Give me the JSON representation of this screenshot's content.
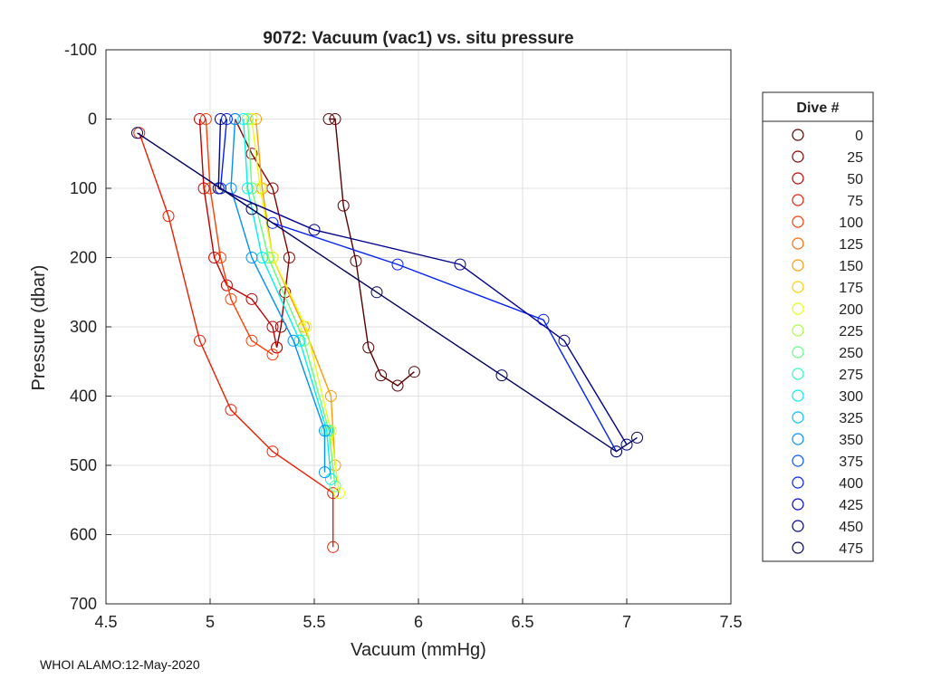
{
  "chart_data": {
    "type": "scatter",
    "title": "9072: Vacuum (vac1) vs. situ pressure",
    "xlabel": "Vacuum (mmHg)",
    "ylabel": "Pressure (dbar)",
    "xlim": [
      4.5,
      7.5
    ],
    "ylim": [
      -100,
      700
    ],
    "y_reversed": true,
    "grid": true,
    "xticks": [
      4.5,
      5,
      5.5,
      6,
      6.5,
      7,
      7.5
    ],
    "xtick_labels": [
      "4.5",
      "5",
      "5.5",
      "6",
      "6.5",
      "7",
      "7.5"
    ],
    "yticks": [
      -100,
      0,
      100,
      200,
      300,
      400,
      500,
      600,
      700
    ],
    "ytick_labels": [
      "-100",
      "0",
      "100",
      "200",
      "300",
      "400",
      "500",
      "600",
      "700"
    ],
    "legend": {
      "title": "Dive #",
      "placement": "outside-right",
      "entries": [
        {
          "label": "0",
          "color": "#5a0000"
        },
        {
          "label": "25",
          "color": "#8a0000"
        },
        {
          "label": "50",
          "color": "#c00000"
        },
        {
          "label": "75",
          "color": "#ee1c00"
        },
        {
          "label": "100",
          "color": "#ff3c00"
        },
        {
          "label": "125",
          "color": "#ff6a00"
        },
        {
          "label": "150",
          "color": "#ff9a00"
        },
        {
          "label": "175",
          "color": "#ffd000"
        },
        {
          "label": "200",
          "color": "#e6ff10"
        },
        {
          "label": "225",
          "color": "#a8ff40"
        },
        {
          "label": "250",
          "color": "#60ff80"
        },
        {
          "label": "275",
          "color": "#28ffb8"
        },
        {
          "label": "300",
          "color": "#00f0f0"
        },
        {
          "label": "325",
          "color": "#00c0ff"
        },
        {
          "label": "350",
          "color": "#0090ff"
        },
        {
          "label": "375",
          "color": "#0058ff"
        },
        {
          "label": "400",
          "color": "#0020ff"
        },
        {
          "label": "425",
          "color": "#0000d8"
        },
        {
          "label": "450",
          "color": "#000090"
        },
        {
          "label": "475",
          "color": "#000060"
        }
      ]
    },
    "series": [
      {
        "name": "0",
        "color": "#5a0000",
        "x": [
          5.57,
          5.6,
          5.64,
          5.7,
          5.76,
          5.82,
          5.9,
          5.98
        ],
        "y": [
          0,
          0,
          125,
          205,
          330,
          370,
          385,
          365
        ]
      },
      {
        "name": "25",
        "color": "#8a0000",
        "x": [
          5.32,
          5.34,
          5.36,
          5.38,
          5.3,
          5.2,
          5.12
        ],
        "y": [
          330,
          300,
          250,
          200,
          100,
          50,
          0
        ]
      },
      {
        "name": "50",
        "color": "#c00000",
        "x": [
          4.95,
          4.97,
          5.02,
          5.08,
          5.2,
          5.3,
          5.32
        ],
        "y": [
          0,
          100,
          200,
          240,
          260,
          300,
          330
        ]
      },
      {
        "name": "75",
        "color": "#ee1c00",
        "x": [
          4.66,
          4.8,
          4.95,
          5.1,
          5.3,
          5.59,
          5.59
        ],
        "y": [
          20,
          140,
          320,
          420,
          480,
          540,
          618
        ]
      },
      {
        "name": "100",
        "color": "#ff3c00",
        "x": [
          4.98,
          5.0,
          5.05,
          5.1,
          5.2,
          5.3
        ],
        "y": [
          0,
          100,
          200,
          260,
          320,
          340
        ]
      },
      {
        "name": "150",
        "color": "#ff9a00",
        "x": [
          5.22,
          5.25,
          5.3,
          5.45,
          5.58,
          5.6
        ],
        "y": [
          0,
          100,
          200,
          300,
          400,
          500
        ]
      },
      {
        "name": "200",
        "color": "#e6ff10",
        "x": [
          5.2,
          5.24,
          5.3,
          5.46,
          5.58,
          5.62
        ],
        "y": [
          0,
          100,
          200,
          300,
          450,
          540
        ]
      },
      {
        "name": "250",
        "color": "#60ff80",
        "x": [
          5.18,
          5.2,
          5.28,
          5.45,
          5.57,
          5.6
        ],
        "y": [
          0,
          100,
          200,
          320,
          450,
          530
        ]
      },
      {
        "name": "300",
        "color": "#00f0f0",
        "x": [
          5.16,
          5.18,
          5.25,
          5.43,
          5.56,
          5.58
        ],
        "y": [
          0,
          100,
          200,
          320,
          450,
          520
        ]
      },
      {
        "name": "350",
        "color": "#0090ff",
        "x": [
          5.12,
          5.1,
          5.2,
          5.4,
          5.55,
          5.55
        ],
        "y": [
          0,
          100,
          200,
          320,
          450,
          510
        ]
      },
      {
        "name": "400",
        "color": "#0020ff",
        "x": [
          5.08,
          5.05,
          5.3,
          5.9,
          6.6,
          6.95
        ],
        "y": [
          0,
          100,
          150,
          210,
          290,
          480
        ]
      },
      {
        "name": "450",
        "color": "#000090",
        "x": [
          5.05,
          5.04,
          5.5,
          6.2,
          6.7,
          7.0
        ],
        "y": [
          0,
          100,
          160,
          210,
          320,
          470
        ]
      },
      {
        "name": "475",
        "color": "#000060",
        "x": [
          4.65,
          5.2,
          5.8,
          6.4,
          6.95,
          7.05
        ],
        "y": [
          20,
          130,
          250,
          370,
          480,
          460
        ]
      }
    ]
  },
  "footer": {
    "text": "WHOI ALAMO:12-May-2020"
  }
}
